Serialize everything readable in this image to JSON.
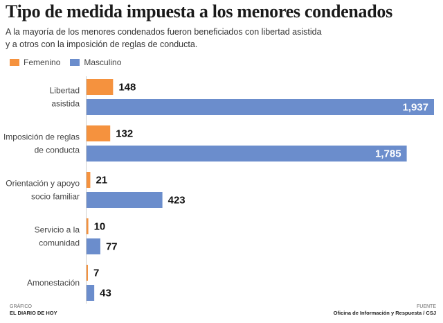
{
  "header": {
    "title": "Tipo de medida impuesta a los menores condenados",
    "subtitle_line1": "A la mayoría de los menores condenados fueron beneficiados con libertad asistida",
    "subtitle_line2": "y a otros con la imposición de reglas de conducta."
  },
  "legend": {
    "female_label": "Femenino",
    "male_label": "Masculino"
  },
  "colors": {
    "female": "#f5923e",
    "male": "#6b8dcc",
    "axis": "#cfcfcf"
  },
  "chart_data": {
    "type": "bar",
    "orientation": "horizontal",
    "title": "Tipo de medida impuesta a los menores condenados",
    "xlim": [
      0,
      1937
    ],
    "categories": [
      [
        "Libertad",
        "asistida"
      ],
      [
        "Imposición de reglas",
        "de conducta"
      ],
      [
        "Orientación y apoyo",
        "socio familiar"
      ],
      [
        "Servicio a la",
        "comunidad"
      ],
      [
        "Amonestación"
      ]
    ],
    "series": [
      {
        "name": "Femenino",
        "values": [
          148,
          132,
          21,
          10,
          7
        ],
        "labels": [
          "148",
          "132",
          "21",
          "10",
          "7"
        ]
      },
      {
        "name": "Masculino",
        "values": [
          1937,
          1785,
          423,
          77,
          43
        ],
        "labels": [
          "1,937",
          "1,785",
          "423",
          "77",
          "43"
        ]
      }
    ]
  },
  "footer": {
    "left_caption": "GRÁFICO",
    "left_source": "EL DIARIO DE HOY",
    "right_caption": "FUENTE",
    "right_source": "Oficina de Información y Respuesta / CSJ"
  }
}
